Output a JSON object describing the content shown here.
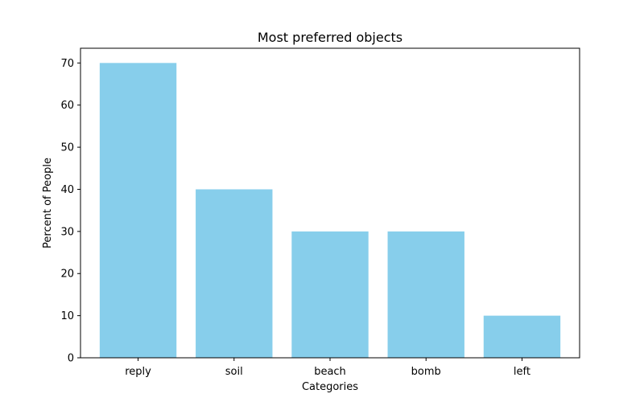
{
  "chart_data": {
    "type": "bar",
    "title": "Most preferred objects",
    "xlabel": "Categories",
    "ylabel": "Percent of People",
    "categories": [
      "reply",
      "soil",
      "beach",
      "bomb",
      "left"
    ],
    "values": [
      70,
      40,
      30,
      30,
      10
    ],
    "ylim": [
      0,
      73.5
    ],
    "yticks": [
      0,
      10,
      20,
      30,
      40,
      50,
      60,
      70
    ],
    "bar_color": "#87ceeb",
    "grid": false,
    "legend": "none"
  }
}
